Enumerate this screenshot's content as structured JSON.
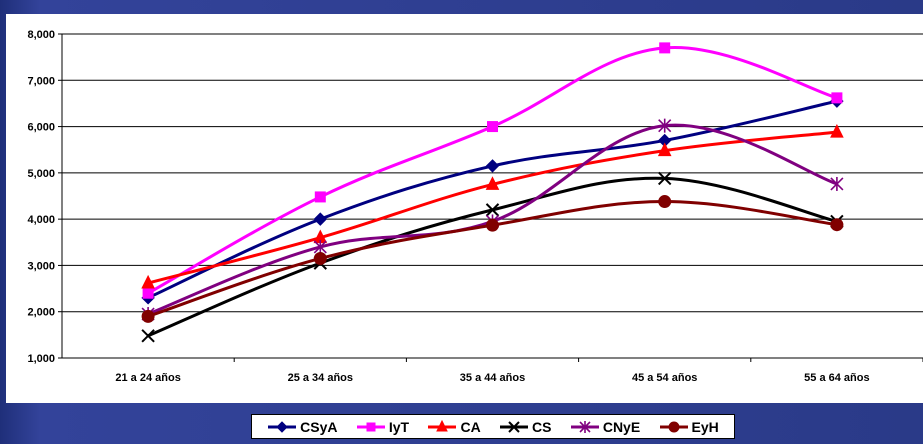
{
  "chart_data": {
    "type": "line",
    "title": "",
    "xlabel": "",
    "ylabel": "",
    "categories": [
      "21 a 24 años",
      "25 a 34 años",
      "35 a 44 años",
      "45 a 54 años",
      "55 a 64 años"
    ],
    "ylim": [
      1000,
      8000
    ],
    "yticks": [
      "1,000",
      "2,000",
      "3,000",
      "4,000",
      "5,000",
      "6,000",
      "7,000",
      "8,000"
    ],
    "grid": "horizontal",
    "legend": "bottom",
    "series": [
      {
        "name": "CSyA",
        "color": "#000080",
        "marker": "diamond",
        "values": [
          2300,
          4000,
          5150,
          5700,
          6550
        ]
      },
      {
        "name": "IyT",
        "color": "#ff00ff",
        "marker": "square",
        "values": [
          2400,
          4480,
          6000,
          7700,
          6620
        ]
      },
      {
        "name": "CA",
        "color": "#ff0000",
        "marker": "triangle",
        "values": [
          2620,
          3600,
          4750,
          5480,
          5880
        ]
      },
      {
        "name": "CS",
        "color": "#000000",
        "marker": "x",
        "values": [
          1480,
          3050,
          4200,
          4880,
          3950
        ]
      },
      {
        "name": "CNyE",
        "color": "#800080",
        "marker": "star",
        "values": [
          1950,
          3400,
          3950,
          6020,
          4760
        ]
      },
      {
        "name": "EyH",
        "color": "#800000",
        "marker": "circle",
        "values": [
          1900,
          3150,
          3870,
          4380,
          3880
        ]
      }
    ]
  }
}
